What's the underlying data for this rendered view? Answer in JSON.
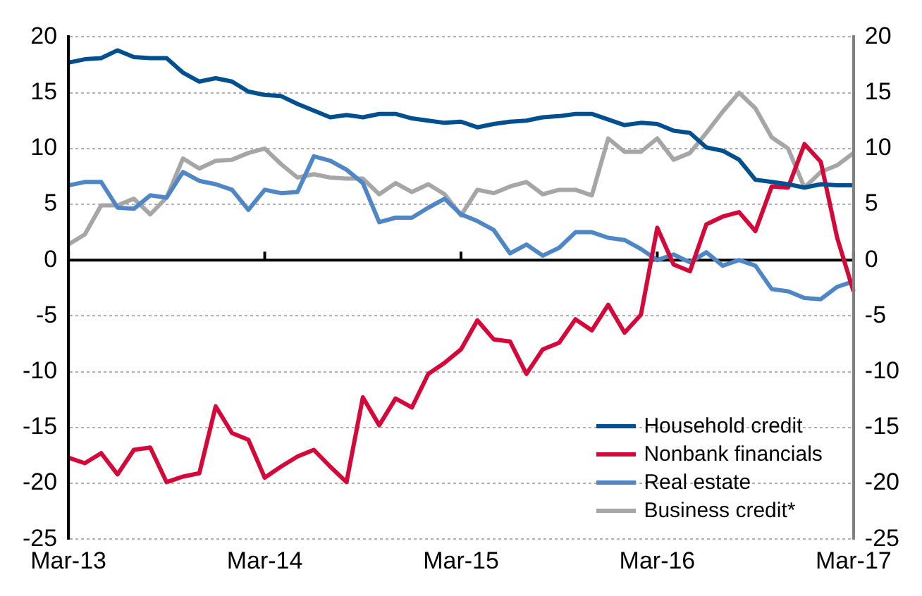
{
  "chart_data": {
    "type": "line",
    "categories": [
      "Mar-13",
      null,
      null,
      null,
      null,
      null,
      null,
      null,
      null,
      null,
      null,
      null,
      "Mar-14",
      null,
      null,
      null,
      null,
      null,
      null,
      null,
      null,
      null,
      null,
      null,
      "Mar-15",
      null,
      null,
      null,
      null,
      null,
      null,
      null,
      null,
      null,
      null,
      null,
      "Mar-16",
      null,
      null,
      null,
      null,
      null,
      null,
      null,
      null,
      null,
      null,
      null,
      "Mar-17"
    ],
    "series": [
      {
        "name": "Household credit",
        "color": "#00508f",
        "values": [
          17.7,
          18,
          18.1,
          18.8,
          18.2,
          18.1,
          18.1,
          16.8,
          16,
          16.3,
          16,
          15.1,
          14.8,
          14.7,
          14,
          13.4,
          12.8,
          13,
          12.8,
          13.1,
          13.1,
          12.7,
          12.5,
          12.3,
          12.4,
          11.9,
          12.2,
          12.4,
          12.5,
          12.8,
          12.9,
          13.1,
          13.1,
          12.6,
          12.1,
          12.3,
          12.2,
          11.6,
          11.4,
          10.1,
          9.8,
          9,
          7.2,
          7,
          6.8,
          6.5,
          6.8,
          6.7,
          6.7
        ]
      },
      {
        "name": "Nonbank financials",
        "color": "#d4093a",
        "values": [
          -17.7,
          -18.2,
          -17.3,
          -19.2,
          -17,
          -16.8,
          -19.9,
          -19.4,
          -19.1,
          -13.1,
          -15.5,
          -16.1,
          -19.5,
          -18.5,
          -17.6,
          -17,
          -18.5,
          -19.9,
          -12.3,
          -14.8,
          -12.4,
          -13.2,
          -10.2,
          -9.2,
          -8,
          -5.4,
          -7.1,
          -7.3,
          -10.2,
          -8,
          -7.4,
          -5.3,
          -6.3,
          -4,
          -6.5,
          -4.9,
          2.9,
          -0.4,
          -1,
          3.2,
          3.9,
          4.3,
          2.6,
          6.6,
          6.5,
          10.4,
          8.8,
          2,
          -2.8
        ]
      },
      {
        "name": "Real estate",
        "color": "#4f87c6",
        "values": [
          6.7,
          7,
          7,
          4.7,
          4.6,
          5.8,
          5.6,
          7.9,
          7.1,
          6.8,
          6.3,
          4.5,
          6.3,
          6,
          6.1,
          9.3,
          8.9,
          8.1,
          6.9,
          3.4,
          3.8,
          3.8,
          4.7,
          5.5,
          4.1,
          3.5,
          2.7,
          0.6,
          1.4,
          0.4,
          1.1,
          2.5,
          2.5,
          2,
          1.8,
          1,
          0,
          0.5,
          -0.2,
          0.7,
          -0.5,
          0,
          -0.5,
          -2.6,
          -2.8,
          -3.4,
          -3.5,
          -2.4,
          -1.9
        ]
      },
      {
        "name": "Business credit*",
        "color": "#a6a6a6",
        "values": [
          1.4,
          2.3,
          4.9,
          4.9,
          5.5,
          4.1,
          5.6,
          9.1,
          8.2,
          8.9,
          9,
          9.6,
          10,
          8.6,
          7.4,
          7.7,
          7.4,
          7.3,
          7.3,
          5.9,
          6.9,
          6.1,
          6.8,
          5.9,
          4,
          6.3,
          6,
          6.6,
          7,
          5.9,
          6.3,
          6.3,
          5.8,
          10.9,
          9.7,
          9.7,
          10.9,
          9,
          9.6,
          11.4,
          13.3,
          15,
          13.6,
          11,
          10,
          6.5,
          7.9,
          8.5,
          9.6
        ]
      }
    ],
    "ylim": [
      -25,
      20
    ],
    "yticks": [
      -25,
      -20,
      -15,
      -10,
      -5,
      0,
      5,
      10,
      15,
      20
    ],
    "y2lim": [
      -25,
      20
    ],
    "y2ticks": [
      -25,
      -20,
      -15,
      -10,
      -5,
      0,
      5,
      10,
      15,
      20
    ],
    "ref_lines": [
      {
        "axis": "y",
        "value": 0,
        "color": "#000000"
      }
    ],
    "grid": "y",
    "legend": "bottom right",
    "marker": "none",
    "line_style": "solid"
  }
}
